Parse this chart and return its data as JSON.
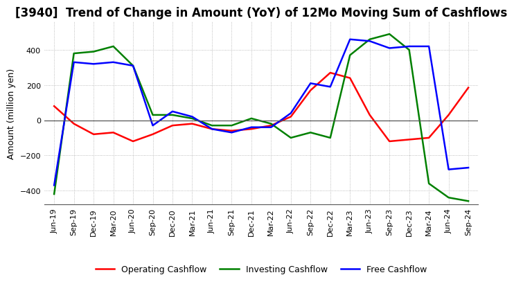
{
  "title": "[3940]  Trend of Change in Amount (YoY) of 12Mo Moving Sum of Cashflows",
  "ylabel": "Amount (million yen)",
  "ylim": [
    -480,
    560
  ],
  "yticks": [
    -400,
    -200,
    0,
    200,
    400
  ],
  "legend_labels": [
    "Operating Cashflow",
    "Investing Cashflow",
    "Free Cashflow"
  ],
  "legend_colors": [
    "#ff0000",
    "#008000",
    "#0000ff"
  ],
  "x_labels": [
    "Jun-19",
    "Sep-19",
    "Dec-19",
    "Mar-20",
    "Jun-20",
    "Sep-20",
    "Dec-20",
    "Mar-21",
    "Jun-21",
    "Sep-21",
    "Dec-21",
    "Mar-22",
    "Jun-22",
    "Sep-22",
    "Dec-22",
    "Mar-23",
    "Jun-23",
    "Sep-23",
    "Dec-23",
    "Mar-24",
    "Jun-24",
    "Sep-24"
  ],
  "operating": [
    80,
    -20,
    -80,
    -70,
    -120,
    -80,
    -30,
    -20,
    -50,
    -60,
    -50,
    -30,
    20,
    170,
    270,
    240,
    30,
    -120,
    -110,
    -100,
    30,
    185
  ],
  "investing": [
    -420,
    380,
    390,
    420,
    310,
    30,
    30,
    10,
    -30,
    -30,
    10,
    -20,
    -100,
    -70,
    -100,
    370,
    460,
    490,
    400,
    -360,
    -440,
    -460
  ],
  "free": [
    -370,
    330,
    320,
    330,
    310,
    -30,
    50,
    20,
    -50,
    -70,
    -40,
    -40,
    40,
    210,
    190,
    460,
    450,
    410,
    420,
    420,
    -280,
    -270
  ],
  "background_color": "#ffffff",
  "grid_color": "#aaaaaa",
  "title_fontsize": 12,
  "axis_fontsize": 8,
  "label_fontsize": 9,
  "line_width": 1.8
}
